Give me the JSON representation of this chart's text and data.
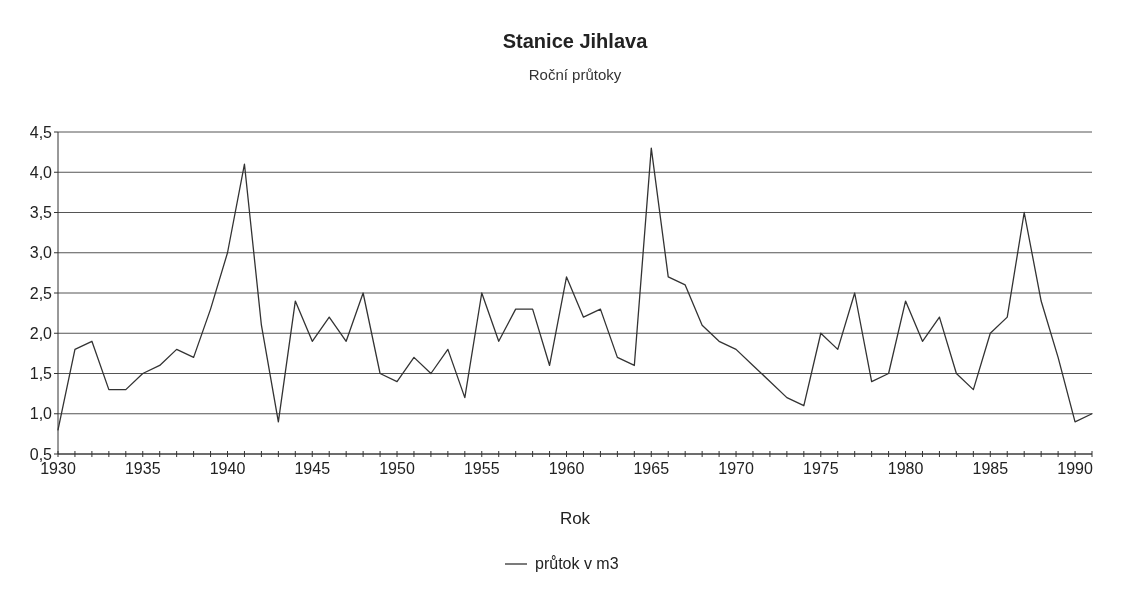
{
  "chart_data": {
    "type": "line",
    "title": "Stanice Jihlava",
    "subtitle": "Roční průtoky",
    "xlabel": "Rok",
    "x": [
      1930,
      1931,
      1932,
      1933,
      1934,
      1935,
      1936,
      1937,
      1938,
      1939,
      1940,
      1941,
      1942,
      1943,
      1944,
      1945,
      1946,
      1947,
      1948,
      1949,
      1950,
      1951,
      1952,
      1953,
      1954,
      1955,
      1956,
      1957,
      1958,
      1959,
      1960,
      1961,
      1962,
      1963,
      1964,
      1965,
      1966,
      1967,
      1968,
      1969,
      1970,
      1971,
      1972,
      1973,
      1974,
      1975,
      1976,
      1977,
      1978,
      1979,
      1980,
      1981,
      1982,
      1983,
      1984,
      1985,
      1986,
      1987,
      1988,
      1989,
      1990,
      1991
    ],
    "series": [
      {
        "name": "průtok v m3",
        "color": "#333333",
        "values": [
          0.8,
          1.8,
          1.9,
          1.3,
          1.3,
          1.5,
          1.6,
          1.8,
          1.7,
          2.3,
          3.0,
          4.1,
          2.1,
          0.9,
          2.4,
          1.9,
          2.2,
          1.9,
          2.5,
          1.5,
          1.4,
          1.7,
          1.5,
          1.8,
          1.2,
          2.5,
          1.9,
          2.3,
          2.3,
          1.6,
          2.7,
          2.2,
          2.3,
          1.7,
          1.6,
          4.3,
          2.7,
          2.6,
          2.1,
          1.9,
          1.8,
          1.6,
          1.4,
          1.2,
          1.1,
          2.0,
          1.8,
          2.5,
          1.4,
          1.5,
          2.4,
          1.9,
          2.2,
          1.5,
          1.3,
          2.0,
          2.2,
          3.5,
          2.4,
          1.7,
          0.9,
          1.0
        ]
      }
    ],
    "xlim": [
      1930,
      1991
    ],
    "xticks": [
      1930,
      {
        "value": 1931,
        "label": null
      },
      {
        "value": 1932,
        "label": null
      },
      {
        "value": 1933,
        "label": null
      },
      {
        "value": 1934,
        "label": null
      },
      1935,
      {
        "value": 1936,
        "label": null
      },
      {
        "value": 1937,
        "label": null
      },
      {
        "value": 1938,
        "label": null
      },
      {
        "value": 1939,
        "label": null
      },
      1940,
      {
        "value": 1941,
        "label": null
      },
      {
        "value": 1942,
        "label": null
      },
      {
        "value": 1943,
        "label": null
      },
      {
        "value": 1944,
        "label": null
      },
      1945,
      {
        "value": 1946,
        "label": null
      },
      {
        "value": 1947,
        "label": null
      },
      {
        "value": 1948,
        "label": null
      },
      {
        "value": 1949,
        "label": null
      },
      1950,
      {
        "value": 1951,
        "label": null
      },
      {
        "value": 1952,
        "label": null
      },
      {
        "value": 1953,
        "label": null
      },
      {
        "value": 1954,
        "label": null
      },
      1955,
      {
        "value": 1956,
        "label": null
      },
      {
        "value": 1957,
        "label": null
      },
      {
        "value": 1958,
        "label": null
      },
      {
        "value": 1959,
        "label": null
      },
      1960,
      {
        "value": 1961,
        "label": null
      },
      {
        "value": 1962,
        "label": null
      },
      {
        "value": 1963,
        "label": null
      },
      {
        "value": 1964,
        "label": null
      },
      1965,
      {
        "value": 1966,
        "label": null
      },
      {
        "value": 1967,
        "label": null
      },
      {
        "value": 1968,
        "label": null
      },
      {
        "value": 1969,
        "label": null
      },
      1970,
      {
        "value": 1971,
        "label": null
      },
      {
        "value": 1972,
        "label": null
      },
      {
        "value": 1973,
        "label": null
      },
      {
        "value": 1974,
        "label": null
      },
      1975,
      {
        "value": 1976,
        "label": null
      },
      {
        "value": 1977,
        "label": null
      },
      {
        "value": 1978,
        "label": null
      },
      {
        "value": 1979,
        "label": null
      },
      1980,
      {
        "value": 1981,
        "label": null
      },
      {
        "value": 1982,
        "label": null
      },
      {
        "value": 1983,
        "label": null
      },
      {
        "value": 1984,
        "label": null
      },
      1985,
      {
        "value": 1986,
        "label": null
      },
      {
        "value": 1987,
        "label": null
      },
      {
        "value": 1988,
        "label": null
      },
      {
        "value": 1989,
        "label": null
      },
      1990,
      {
        "value": 1991,
        "label": null
      }
    ],
    "ylim": [
      0.5,
      4.5
    ],
    "yticks": [
      {
        "value": 0.5,
        "label": "0,5"
      },
      {
        "value": 1.0,
        "label": "1,0"
      },
      {
        "value": 1.5,
        "label": "1,5"
      },
      {
        "value": 2.0,
        "label": "2,0"
      },
      {
        "value": 2.5,
        "label": "2,5"
      },
      {
        "value": 3.0,
        "label": "3,0"
      },
      {
        "value": 3.5,
        "label": "3,5"
      },
      {
        "value": 4.0,
        "label": "4,0"
      },
      {
        "value": 4.5,
        "label": "4,5"
      }
    ],
    "grid": "y",
    "legend": "bottom",
    "marker": "none",
    "line_style": "solid"
  }
}
